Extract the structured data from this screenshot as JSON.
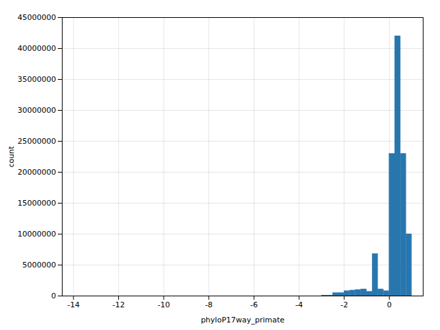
{
  "chart_data": {
    "type": "histogram",
    "xlabel": "phyloP17way_primate",
    "ylabel": "count",
    "color": "#2876ae",
    "bins": [
      -14.0,
      -13.5,
      -13.0,
      -12.5,
      -12.0,
      -11.5,
      -11.0,
      -10.5,
      -10.0,
      -9.5,
      -9.0,
      -8.5,
      -8.0,
      -7.5,
      -7.0,
      -6.5,
      -6.0,
      -5.5,
      -5.0,
      -4.5,
      -4.0,
      -3.5,
      -3.0,
      -2.5,
      -2.0,
      -1.75,
      -1.5,
      -1.25,
      -1.0,
      -0.75,
      -0.5,
      -0.25,
      0.0,
      0.25,
      0.5,
      0.75,
      1.0,
      1.25
    ],
    "values": [
      0,
      0,
      0,
      0,
      0,
      0,
      0,
      0,
      0,
      0,
      0,
      0,
      0,
      0,
      0,
      0,
      0,
      0,
      0,
      0,
      0,
      0,
      100000,
      500000,
      800000,
      900000,
      1000000,
      1100000,
      700000,
      6800000,
      1100000,
      800000,
      23000000,
      42000000,
      23000000,
      10000000,
      0
    ],
    "xlim": [
      -14.5,
      1.5
    ],
    "ylim": [
      0,
      45000000
    ],
    "xticks": [
      -14,
      -12,
      -10,
      -8,
      -6,
      -4,
      -2,
      0
    ],
    "yticks": [
      0,
      5000000,
      10000000,
      15000000,
      20000000,
      25000000,
      30000000,
      35000000,
      40000000,
      45000000
    ],
    "grid": true
  }
}
